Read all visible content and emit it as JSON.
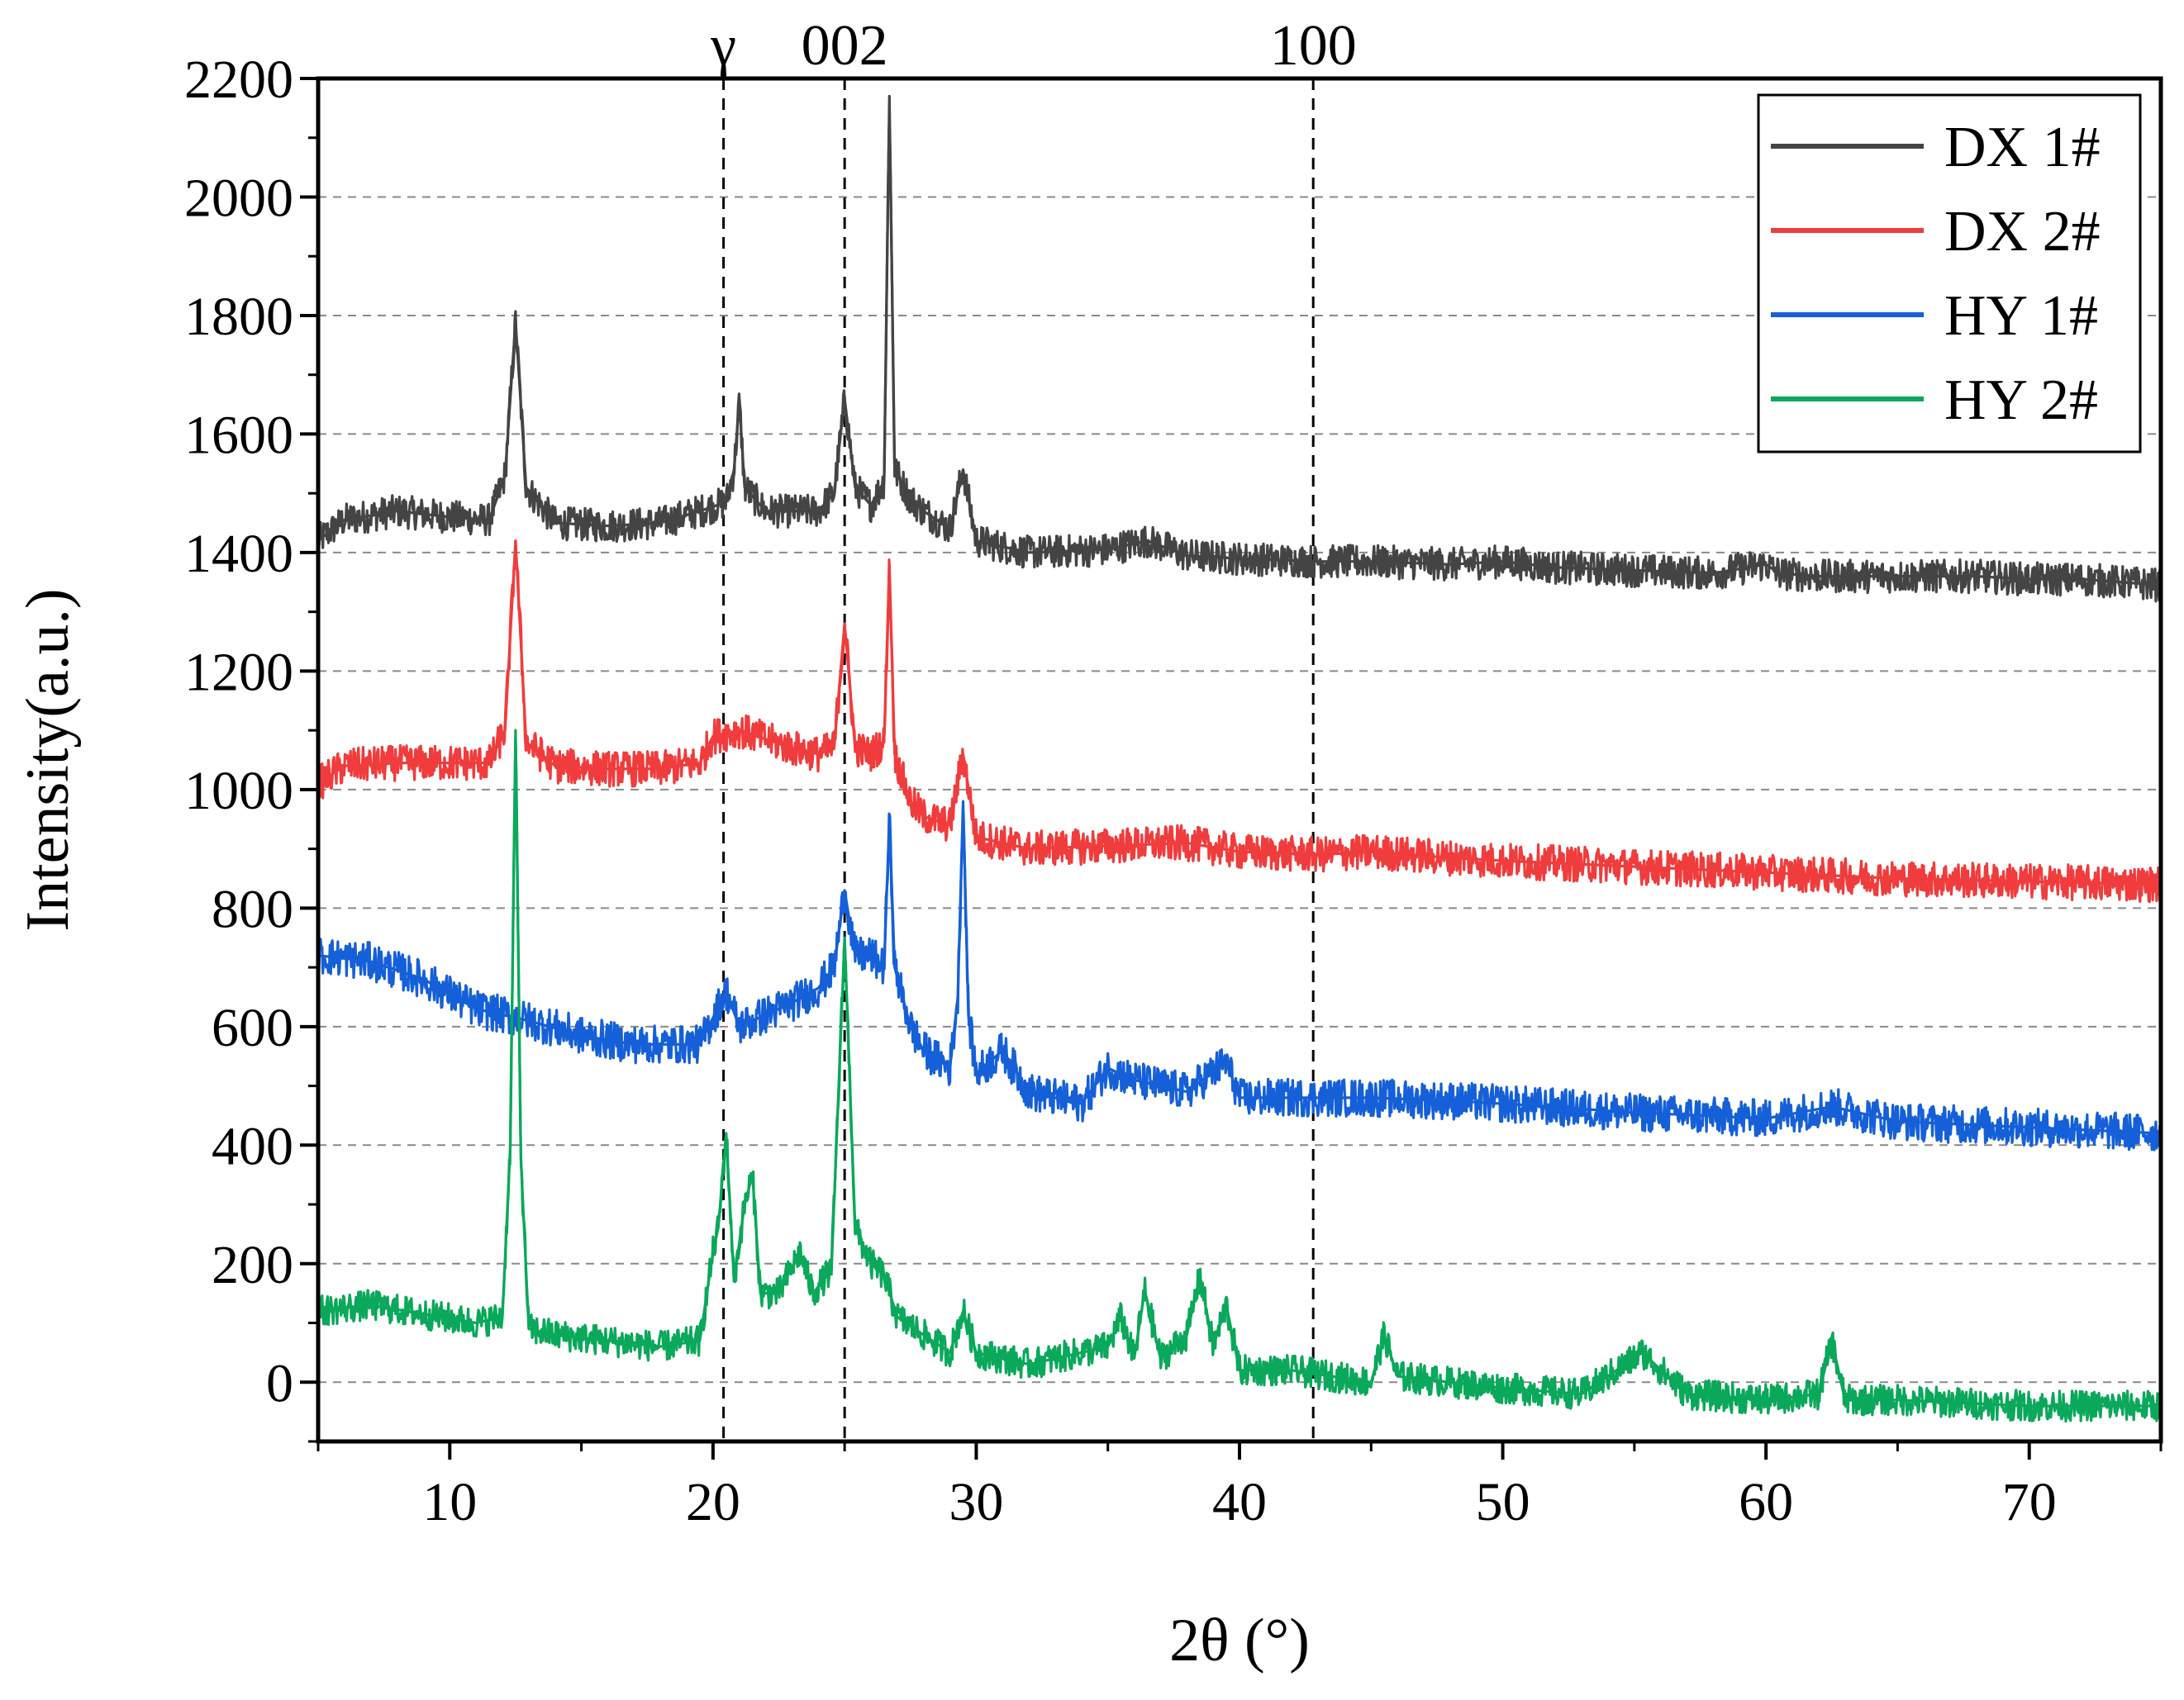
{
  "chart_data": {
    "type": "line",
    "title": "",
    "xlabel": "2θ (°)",
    "ylabel": "Intensity(a.u.)",
    "xlim": [
      5,
      75
    ],
    "ylim": [
      -100,
      2200
    ],
    "x_ticks": [
      10,
      20,
      30,
      40,
      50,
      60,
      70
    ],
    "x_tick_labels": [
      "10",
      "20",
      "30",
      "40",
      "50",
      "60",
      "70"
    ],
    "y_ticks": [
      0,
      200,
      400,
      600,
      800,
      1000,
      1200,
      1400,
      1600,
      1800,
      2000,
      2200
    ],
    "y_tick_labels": [
      "0",
      "200",
      "400",
      "600",
      "800",
      "1000",
      "1200",
      "1400",
      "1600",
      "1800",
      "2000",
      "2200"
    ],
    "grid": true,
    "legend_position": "top-right",
    "reference_lines": [
      {
        "x": 20.4,
        "label": "γ"
      },
      {
        "x": 25.0,
        "label": "002"
      },
      {
        "x": 42.8,
        "label": "100"
      }
    ],
    "series": [
      {
        "name": "DX 1#",
        "color": "#444444",
        "noise": 28,
        "x": [
          5,
          6,
          8,
          10,
          11.5,
          12.1,
          12.5,
          12.9,
          14,
          16,
          18,
          19.5,
          20.5,
          20.8,
          21.0,
          21.2,
          22,
          24,
          24.6,
          25.0,
          25.4,
          26,
          26.5,
          26.7,
          26.9,
          27.5,
          28,
          29,
          29.5,
          30,
          32,
          35,
          36.5,
          38,
          40,
          43,
          45,
          48,
          50,
          52,
          55,
          58,
          60,
          60.5,
          62,
          65,
          68,
          70,
          72,
          75
        ],
        "y": [
          1420,
          1455,
          1470,
          1460,
          1455,
          1530,
          1790,
          1510,
          1450,
          1445,
          1450,
          1470,
          1485,
          1540,
          1655,
          1510,
          1470,
          1470,
          1500,
          1660,
          1510,
          1480,
          1520,
          2170,
          1540,
          1490,
          1470,
          1440,
          1540,
          1420,
          1400,
          1405,
          1420,
          1395,
          1390,
          1385,
          1385,
          1380,
          1385,
          1375,
          1370,
          1365,
          1380,
          1365,
          1360,
          1360,
          1360,
          1355,
          1355,
          1345
        ]
      },
      {
        "name": "DX 2#",
        "color": "#f03c3c",
        "noise": 30,
        "x": [
          5,
          6,
          8,
          10,
          11.5,
          12.1,
          12.5,
          12.9,
          14,
          16,
          18,
          19.5,
          20,
          21,
          22,
          23,
          24,
          24.6,
          25.0,
          25.4,
          26,
          26.5,
          26.7,
          26.9,
          27.5,
          28,
          29,
          29.5,
          30,
          32,
          35,
          38,
          40,
          43,
          45,
          48,
          50,
          55,
          60,
          62.5,
          65,
          70,
          75
        ],
        "y": [
          1010,
          1040,
          1045,
          1045,
          1045,
          1100,
          1420,
          1080,
          1040,
          1035,
          1035,
          1045,
          1090,
          1100,
          1085,
          1070,
          1060,
          1070,
          1280,
          1070,
          1060,
          1080,
          1380,
          1060,
          980,
          955,
          940,
          1060,
          920,
          900,
          905,
          910,
          895,
          890,
          895,
          885,
          880,
          870,
          860,
          855,
          850,
          845,
          840
        ]
      },
      {
        "name": "HY 1#",
        "color": "#1560d8",
        "noise": 32,
        "x": [
          5,
          7,
          9,
          11,
          13,
          15,
          17,
          19.5,
          20,
          20.5,
          21,
          22,
          23,
          24,
          24.6,
          25.0,
          25.4,
          26,
          26.5,
          26.7,
          26.9,
          27.5,
          28,
          29,
          29.3,
          29.5,
          29.7,
          30,
          31,
          32,
          34,
          35,
          36,
          38,
          39.5,
          40,
          42,
          45,
          48,
          50,
          55,
          60,
          62.5,
          65,
          70,
          75
        ],
        "y": [
          720,
          710,
          680,
          630,
          610,
          585,
          570,
          570,
          615,
          660,
          600,
          620,
          640,
          665,
          700,
          830,
          720,
          720,
          700,
          950,
          700,
          600,
          560,
          530,
          650,
          980,
          620,
          520,
          560,
          490,
          470,
          530,
          510,
          490,
          540,
          480,
          480,
          480,
          475,
          470,
          455,
          445,
          465,
          440,
          430,
          420
        ]
      },
      {
        "name": "HY 2#",
        "color": "#0aa85a",
        "noise": 26,
        "x": [
          5,
          7,
          9,
          11,
          12,
          12.3,
          12.5,
          12.7,
          13,
          14,
          16,
          18,
          19.5,
          20,
          20.2,
          20.5,
          20.8,
          21.2,
          21.5,
          21.8,
          22.5,
          23.3,
          23.8,
          24.5,
          25.0,
          25.4,
          26,
          26.5,
          27,
          28,
          29,
          29.5,
          30,
          32,
          35,
          35.5,
          36,
          36.4,
          37,
          38,
          38.5,
          39,
          39.5,
          40,
          42,
          45,
          45.5,
          46,
          50,
          53,
          55.3,
          57,
          60,
          62,
          62.5,
          63,
          65,
          70,
          75
        ],
        "y": [
          120,
          130,
          115,
          100,
          110,
          400,
          1100,
          380,
          90,
          80,
          70,
          60,
          70,
          220,
          260,
          420,
          170,
          300,
          350,
          150,
          150,
          220,
          150,
          190,
          750,
          260,
          200,
          180,
          110,
          80,
          50,
          120,
          50,
          30,
          60,
          110,
          40,
          155,
          40,
          80,
          180,
          60,
          130,
          20,
          20,
          0,
          80,
          10,
          -10,
          -20,
          50,
          -20,
          -30,
          -20,
          70,
          -30,
          -30,
          -40,
          -40
        ]
      }
    ]
  }
}
